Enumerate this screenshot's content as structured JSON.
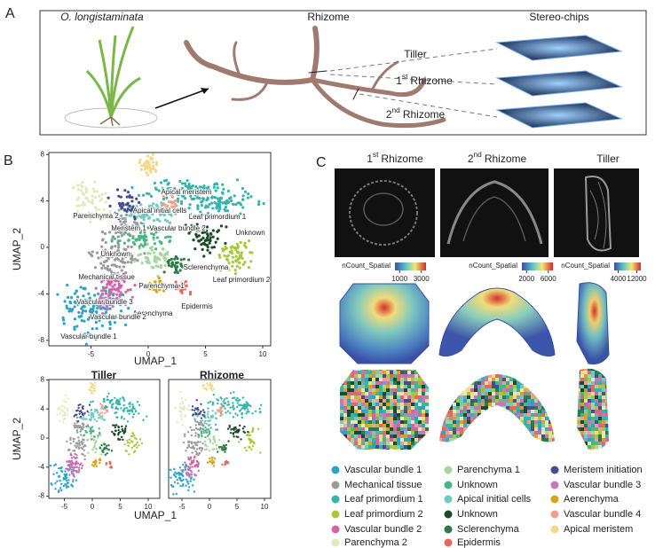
{
  "panel_a": {
    "letter": "A",
    "plant_label": "O. longistaminata",
    "rhizome_label": "Rhizome",
    "chips_label": "Stereo-chips",
    "tiller": "Tiller",
    "first_rhizome": {
      "num": "1",
      "sup": "st",
      "text": "Rhizome"
    },
    "second_rhizome": {
      "num": "2",
      "sup": "nd",
      "text": "Rhizome"
    }
  },
  "panel_b": {
    "letter": "B",
    "umap": {
      "x_label": "UMAP_1",
      "y_label": "UMAP_2",
      "xticks": [
        -5,
        0,
        5,
        10
      ],
      "yticks": [
        -8,
        -4,
        0,
        4,
        8
      ],
      "cluster_labels": [
        "Apical meristem",
        "Apical initial cells",
        "Leaf primordium 1",
        "Parenchyma 2",
        "Meristem 1",
        "Vascular bundle 2",
        "Unknown",
        "Unknown",
        "Sclerenchyma",
        "Mechanical tissue",
        "Parenchyma 1",
        "Leaf primordium 2",
        "Vascular bundle 3",
        "Epidermis",
        "Aerenchyma",
        "Vascular bundle 2",
        "Vascular bundle 1"
      ]
    },
    "split": {
      "titles": [
        "Tiller",
        "Rhizome"
      ],
      "x_label": "UMAP_1",
      "y_label": "UMAP_2",
      "xticks": [
        -5,
        0,
        5,
        10
      ],
      "yticks": [
        -8,
        -4,
        0,
        4,
        8
      ]
    }
  },
  "panel_c": {
    "letter": "C",
    "sections": [
      {
        "title": {
          "num": "1",
          "sup": "st",
          "text": "Rhizome"
        },
        "colorbar": {
          "label": "nCount_Spatial",
          "ticks": [
            1000,
            3000
          ]
        }
      },
      {
        "title": {
          "num": "2",
          "sup": "nd",
          "text": "Rhizome"
        },
        "colorbar": {
          "label": "nCount_Spatial",
          "ticks": [
            2000,
            6000
          ]
        }
      },
      {
        "title": {
          "text": "Tiller"
        },
        "colorbar": {
          "label": "nCount_Spatial",
          "ticks": [
            4000,
            12000
          ]
        }
      }
    ],
    "legend": [
      {
        "name": "Vascular bundle 1",
        "color": "#2aa3c6"
      },
      {
        "name": "Mechanical tissue",
        "color": "#9a9a9a"
      },
      {
        "name": "Leaf primordium 1",
        "color": "#36b3ad"
      },
      {
        "name": "Leaf primordium 2",
        "color": "#a8c83c"
      },
      {
        "name": "Vascular bundle 2",
        "color": "#d064a6"
      },
      {
        "name": "Parenchyma 2",
        "color": "#e2eabd"
      },
      {
        "name": "Parenchyma 1",
        "color": "#a6d6a0"
      },
      {
        "name": "Unknown",
        "color": "#4cb584"
      },
      {
        "name": "Apical initial cells",
        "color": "#70c9c2"
      },
      {
        "name": "Unknown",
        "color": "#1c4a29"
      },
      {
        "name": "Sclerenchyma",
        "color": "#2d7a48"
      },
      {
        "name": "Epidermis",
        "color": "#e8665a"
      },
      {
        "name": "Meristem initiation",
        "color": "#474c8c"
      },
      {
        "name": "Vascular bundle 3",
        "color": "#c07ab8"
      },
      {
        "name": "Aerenchyma",
        "color": "#d9a41a"
      },
      {
        "name": "Vascular bundle 4",
        "color": "#f0a08a"
      },
      {
        "name": "Apical meristem",
        "color": "#f3d887"
      }
    ]
  }
}
